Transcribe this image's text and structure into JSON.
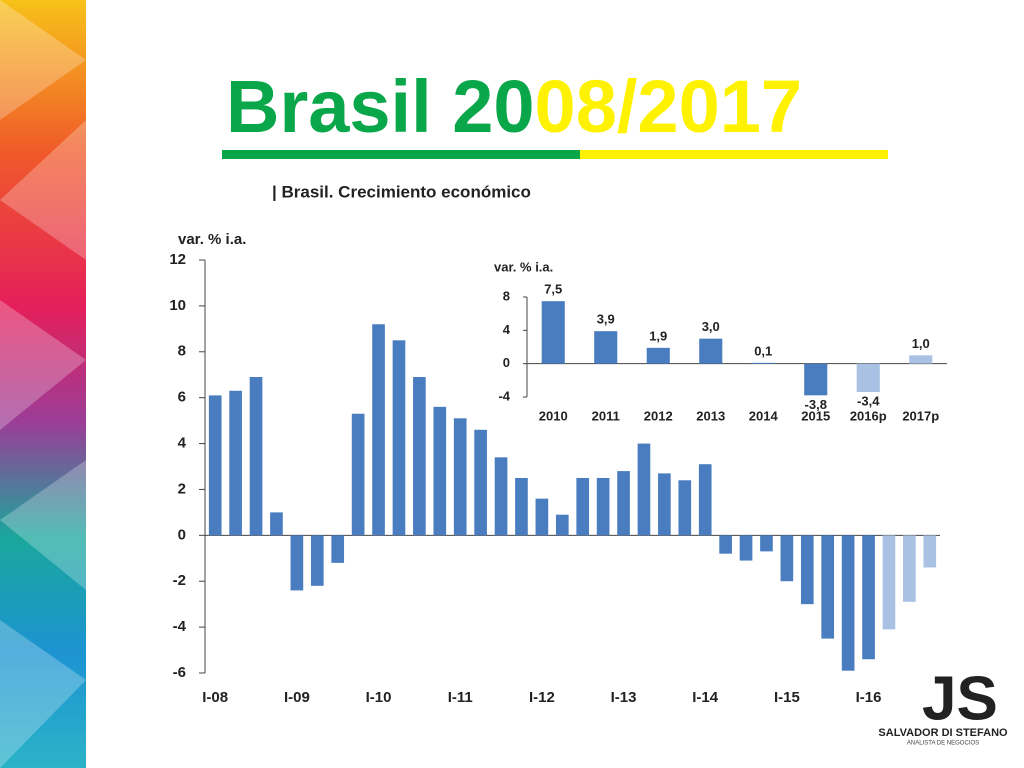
{
  "slide": {
    "title": [
      "Brasil 20",
      "08/2017"
    ]
  },
  "logo": {
    "mark": "JS",
    "name": "SALVADOR DI STEFANO",
    "tagline": "ANALISTA DE NEGOCIOS"
  },
  "chart_data": [
    {
      "type": "bar",
      "title": "| Brasil. Crecimiento económico",
      "y_label": "var. % i.a.",
      "categories": [
        "I-08",
        null,
        null,
        null,
        "I-09",
        null,
        null,
        null,
        "I-10",
        null,
        null,
        null,
        "I-11",
        null,
        null,
        null,
        "I-12",
        null,
        null,
        null,
        "I-13",
        null,
        null,
        null,
        "I-14",
        null,
        null,
        null,
        "I-15",
        null,
        null,
        null,
        "I-16",
        null,
        null,
        null
      ],
      "values": [
        6.1,
        6.3,
        6.9,
        1.0,
        -2.4,
        -2.2,
        -1.2,
        5.3,
        9.2,
        8.5,
        6.9,
        5.6,
        5.1,
        4.6,
        3.4,
        2.5,
        1.6,
        0.9,
        2.5,
        2.5,
        2.8,
        4.0,
        2.7,
        2.4,
        3.1,
        -0.8,
        -1.1,
        -0.7,
        -2.0,
        -3.0,
        -4.5,
        -5.9,
        -5.4,
        -4.1,
        -2.9,
        -1.4
      ],
      "colors": [
        "#4a7dc0",
        "#4a7dc0",
        "#4a7dc0",
        "#4a7dc0",
        "#4a7dc0",
        "#4a7dc0",
        "#4a7dc0",
        "#4a7dc0",
        "#4a7dc0",
        "#4a7dc0",
        "#4a7dc0",
        "#4a7dc0",
        "#4a7dc0",
        "#4a7dc0",
        "#4a7dc0",
        "#4a7dc0",
        "#4a7dc0",
        "#4a7dc0",
        "#4a7dc0",
        "#4a7dc0",
        "#4a7dc0",
        "#4a7dc0",
        "#4a7dc0",
        "#4a7dc0",
        "#4a7dc0",
        "#4a7dc0",
        "#4a7dc0",
        "#4a7dc0",
        "#4a7dc0",
        "#4a7dc0",
        "#4a7dc0",
        "#4a7dc0",
        "#4a7dc0",
        "#a9c2e3",
        "#a9c2e3",
        "#a9c2e3"
      ],
      "ylim": [
        -6,
        12
      ],
      "yticks": [
        -6,
        -4,
        -2,
        0,
        2,
        4,
        6,
        8,
        10,
        12
      ]
    },
    {
      "type": "bar",
      "y_label": "var. % i.a.",
      "categories": [
        "2010",
        "2011",
        "2012",
        "2013",
        "2014",
        "2015",
        "2016p",
        "2017p"
      ],
      "values": [
        7.5,
        3.9,
        1.9,
        3.0,
        0.1,
        -3.8,
        -3.4,
        1.0
      ],
      "value_labels": [
        "7,5",
        "3,9",
        "1,9",
        "3,0",
        "0,1",
        "-3,8",
        "-3,4",
        "1,0"
      ],
      "colors": [
        "#4a7dc0",
        "#4a7dc0",
        "#4a7dc0",
        "#4a7dc0",
        "#4a7dc0",
        "#4a7dc0",
        "#a9c2e3",
        "#a9c2e3"
      ],
      "ylim": [
        -4,
        8
      ],
      "yticks": [
        -4,
        0,
        4,
        8
      ]
    }
  ]
}
